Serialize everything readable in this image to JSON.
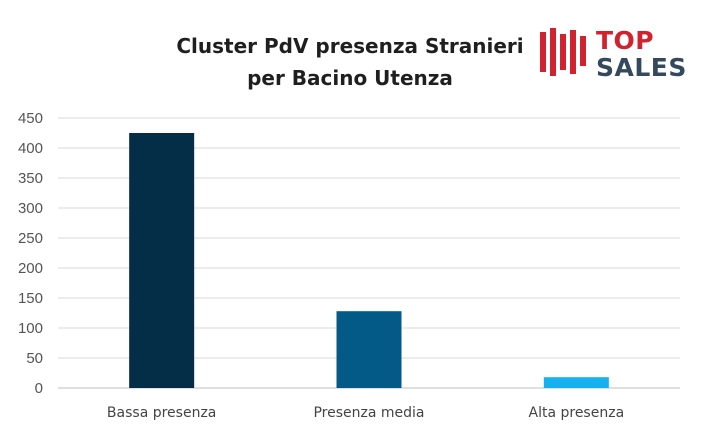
{
  "chart_data": {
    "type": "bar",
    "title_lines": [
      "Cluster PdV presenza Stranieri",
      "per Bacino Utenza"
    ],
    "categories": [
      "Bassa presenza",
      "Presenza media",
      "Alta presenza"
    ],
    "values": [
      425,
      128,
      18
    ],
    "bar_colors": [
      "#042d47",
      "#045a86",
      "#17b0f0"
    ],
    "ylim": [
      0,
      450
    ],
    "yticks": [
      0,
      50,
      100,
      150,
      200,
      250,
      300,
      350,
      400,
      450
    ],
    "grid": true,
    "legend": "none",
    "xlabel": "",
    "ylabel": ""
  },
  "logo": {
    "word_top": "TOP",
    "word_bottom": "SALES",
    "top_color": "#d1222f",
    "bottom_color": "#34495e",
    "bars_color": "#d1222f"
  }
}
